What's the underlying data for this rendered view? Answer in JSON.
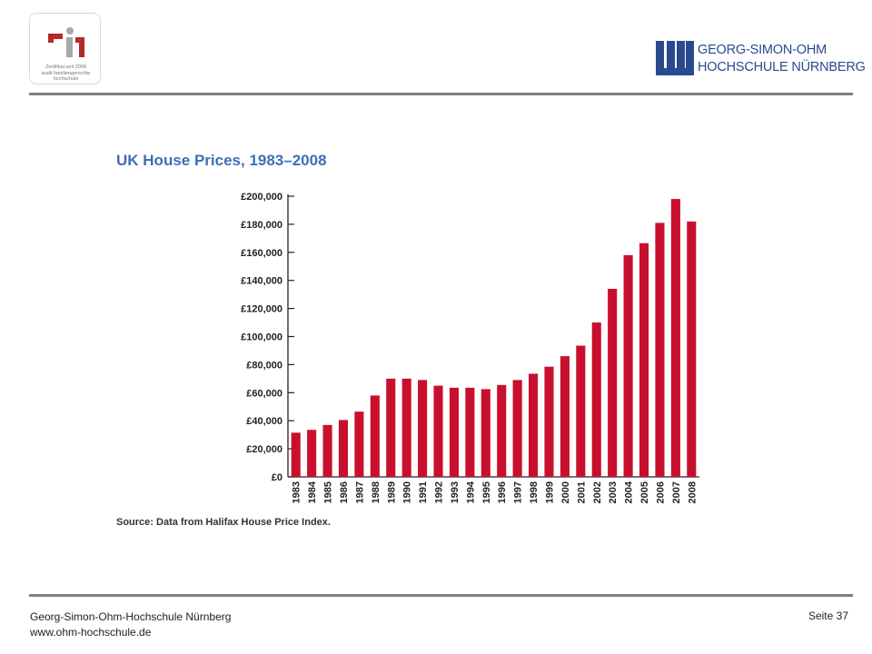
{
  "header": {
    "certificate_lines": [
      "Zertifikat seit 2008",
      "audit familiengerechte",
      "hochschule"
    ],
    "university_name_line1": "GEORG-SIMON-OHM",
    "university_name_line2": "HOCHSCHULE NÜRNBERG"
  },
  "chart_data": {
    "type": "bar",
    "title": "UK House Prices, 1983–2008",
    "xlabel": "",
    "ylabel": "",
    "categories": [
      "1983",
      "1984",
      "1985",
      "1986",
      "1987",
      "1988",
      "1989",
      "1990",
      "1991",
      "1992",
      "1993",
      "1994",
      "1995",
      "1996",
      "1997",
      "1998",
      "1999",
      "2000",
      "2001",
      "2002",
      "2003",
      "2004",
      "2005",
      "2006",
      "2007",
      "2008"
    ],
    "values": [
      31500,
      33500,
      37000,
      40500,
      46500,
      58000,
      70000,
      70000,
      69000,
      65000,
      63500,
      63500,
      62500,
      65500,
      69000,
      73500,
      78500,
      86000,
      93500,
      110000,
      134000,
      158000,
      166500,
      181000,
      198000,
      182000
    ],
    "ylim": [
      0,
      200000
    ],
    "yticks": [
      0,
      20000,
      40000,
      60000,
      80000,
      100000,
      120000,
      140000,
      160000,
      180000,
      200000
    ],
    "ytick_labels": [
      "£0",
      "£20,000",
      "£40,000",
      "£60,000",
      "£80,000",
      "£100,000",
      "£120,000",
      "£140,000",
      "£160,000",
      "£180,000",
      "£200,000"
    ],
    "grid": false,
    "legend": "none",
    "bar_color": "#c8102e",
    "source": "Source: Data from Halifax House Price Index."
  },
  "footer": {
    "organization": "Georg-Simon-Ohm-Hochschule Nürnberg",
    "website": "www.ohm-hochschule.de",
    "page_label": "Seite 37"
  }
}
